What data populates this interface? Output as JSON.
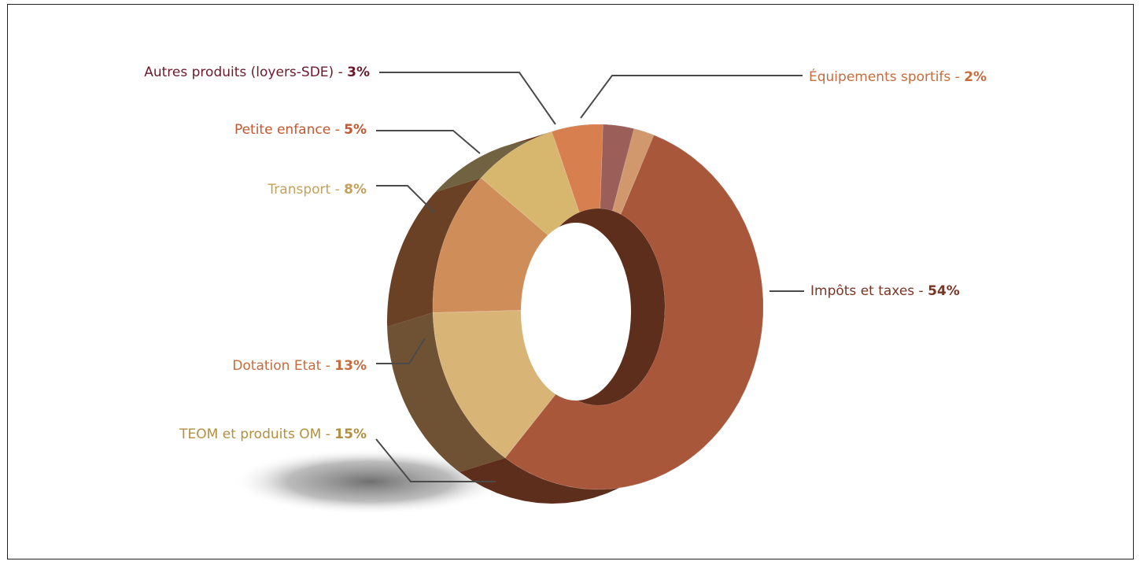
{
  "chart_data": {
    "type": "pie",
    "subtype": "3d-donut",
    "title": "",
    "slices": [
      {
        "name": "Impôts et taxes",
        "value": 54,
        "label_prefix": "Impôts et taxes - ",
        "pct_text": "54%",
        "color": "#a9573a",
        "side_color": "#5e2e1c",
        "label_color": "#7a3524"
      },
      {
        "name": "TEOM et produits OM",
        "value": 15,
        "label_prefix": "TEOM et produits OM - ",
        "pct_text": "15%",
        "color": "#d8b477",
        "side_color": "#6e5233",
        "label_color": "#b2903f"
      },
      {
        "name": "Dotation Etat",
        "value": 13,
        "label_prefix": "Dotation Etat - ",
        "pct_text": "13%",
        "color": "#cf8d59",
        "side_color": "#6b4126",
        "label_color": "#c66c3d"
      },
      {
        "name": "Transport",
        "value": 8,
        "label_prefix": "Transport - ",
        "pct_text": "8%",
        "color": "#d7b66d",
        "side_color": "#716341",
        "label_color": "#c5a05b"
      },
      {
        "name": "Petite enfance",
        "value": 5,
        "label_prefix": "Petite enfance - ",
        "pct_text": "5%",
        "color": "#d77f4f",
        "side_color": "#6e3b25",
        "label_color": "#c4572f"
      },
      {
        "name": "Autres produits (loyers-SDE)",
        "value": 3,
        "label_prefix": "Autres produits (loyers-SDE) - ",
        "pct_text": "3%",
        "color": "#9c5e58",
        "side_color": "#5a3230",
        "label_color": "#6c1a2b"
      },
      {
        "name": "Équipements sportifs",
        "value": 2,
        "label_prefix": "Équipements sportifs - ",
        "pct_text": "2%",
        "color": "#d0986c",
        "side_color": "#7a5236",
        "label_color": "#c66c3d"
      }
    ],
    "colors": {
      "leader_line": "#4a4a4a",
      "shadow": "#555555"
    }
  }
}
